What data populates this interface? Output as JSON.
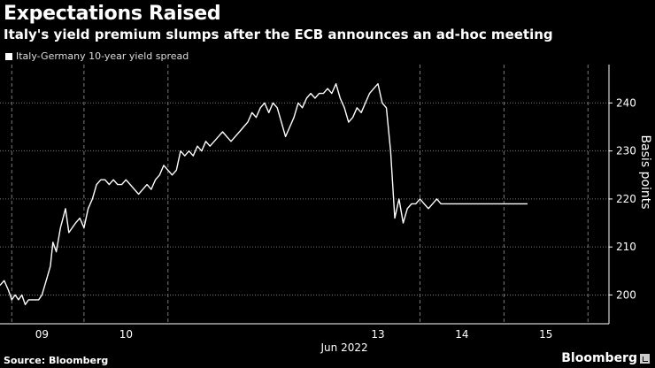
{
  "header": {
    "title": "Expectations Raised",
    "subtitle": "Italy's yield premium slumps after the ECB announces an ad-hoc meeting"
  },
  "footer": {
    "source": "Source: Bloomberg",
    "brand": "Bloomberg"
  },
  "colors": {
    "background": "#000000",
    "line": "#ffffff",
    "grid": "#7a7a7a"
  },
  "chart_data": {
    "type": "line",
    "title": "Expectations Raised",
    "subtitle": "Italy's yield premium slumps after the ECB announces an ad-hoc meeting",
    "ylabel": "Basis points",
    "xlabel": "Jun 2022",
    "ylim": [
      194,
      248
    ],
    "xlim": [
      8.5,
      15.75
    ],
    "y_ticks": [
      200,
      210,
      220,
      230,
      240
    ],
    "x_ticks": [
      {
        "value": 9,
        "label": "09"
      },
      {
        "value": 10,
        "label": "10"
      },
      {
        "value": 13,
        "label": "13"
      },
      {
        "value": 14,
        "label": "14"
      },
      {
        "value": 15,
        "label": "15"
      }
    ],
    "x_tick_values_note_label": "Jun 2022",
    "grid": true,
    "legend_position": "top-left",
    "series": [
      {
        "name": "Italy-Germany 10-year yield spread",
        "x": [
          8.5,
          8.55,
          8.6,
          8.64,
          8.68,
          8.72,
          8.76,
          8.8,
          8.84,
          8.88,
          8.92,
          8.96,
          9.0,
          9.05,
          9.1,
          9.13,
          9.17,
          9.22,
          9.25,
          9.28,
          9.32,
          9.36,
          9.4,
          9.45,
          9.5,
          9.55,
          9.6,
          9.65,
          9.7,
          9.75,
          9.8,
          9.85,
          9.9,
          9.95,
          10.0,
          10.05,
          10.1,
          10.15,
          10.2,
          10.25,
          10.3,
          10.35,
          10.4,
          10.45,
          10.5,
          10.55,
          10.6,
          10.65,
          10.7,
          10.75,
          10.8,
          10.85,
          10.9,
          10.95,
          11.0,
          11.05,
          11.1,
          11.15,
          11.2,
          11.25,
          11.3,
          11.35,
          11.4,
          11.45,
          11.5,
          11.55,
          11.6,
          11.65,
          11.7,
          11.75,
          11.8,
          11.85,
          11.9,
          11.95,
          12.0,
          12.05,
          12.1,
          12.15,
          12.2,
          12.25,
          12.3,
          12.35,
          12.4,
          12.45,
          12.5,
          12.55,
          12.6,
          12.65,
          12.7,
          12.75,
          12.8,
          12.85,
          12.9,
          12.95,
          13.0,
          13.05,
          13.1,
          13.15,
          13.2,
          13.25,
          13.3,
          13.35,
          13.4,
          13.45,
          13.5,
          13.55,
          13.6,
          13.65,
          13.7,
          13.75,
          13.8,
          13.85,
          13.9,
          13.95,
          14.0,
          14.05,
          14.1,
          14.15,
          14.2,
          14.25,
          14.3,
          14.35,
          14.4,
          14.45,
          14.5,
          14.55,
          14.6,
          14.62,
          14.64,
          14.66,
          14.68,
          14.7,
          14.72,
          14.74,
          14.76,
          14.78
        ],
        "values": [
          202,
          203,
          201,
          199,
          200,
          199,
          200,
          198,
          199,
          199,
          199,
          199,
          200,
          203,
          206,
          211,
          209,
          214,
          216,
          218,
          213,
          214,
          215,
          216,
          214,
          218,
          220,
          223,
          224,
          224,
          223,
          224,
          223,
          223,
          224,
          223,
          222,
          221,
          222,
          223,
          222,
          224,
          225,
          227,
          226,
          225,
          226,
          230,
          229,
          230,
          229,
          231,
          230,
          232,
          231,
          232,
          233,
          234,
          233,
          232,
          233,
          234,
          235,
          236,
          238,
          237,
          239,
          240,
          238,
          240,
          239,
          236,
          233,
          235,
          237,
          240,
          239,
          241,
          242,
          241,
          242,
          242,
          243,
          242,
          244,
          241,
          239,
          236,
          237,
          239,
          238,
          240,
          242,
          243,
          244,
          240,
          239,
          230,
          216,
          220,
          215,
          218,
          219,
          219,
          220,
          219,
          218,
          219,
          220,
          219,
          219,
          219,
          219,
          219,
          219,
          219,
          219,
          219,
          219,
          219,
          219,
          219,
          219,
          219,
          219,
          219,
          219,
          219,
          219,
          219,
          219,
          219,
          219,
          219,
          219,
          219
        ]
      }
    ]
  }
}
